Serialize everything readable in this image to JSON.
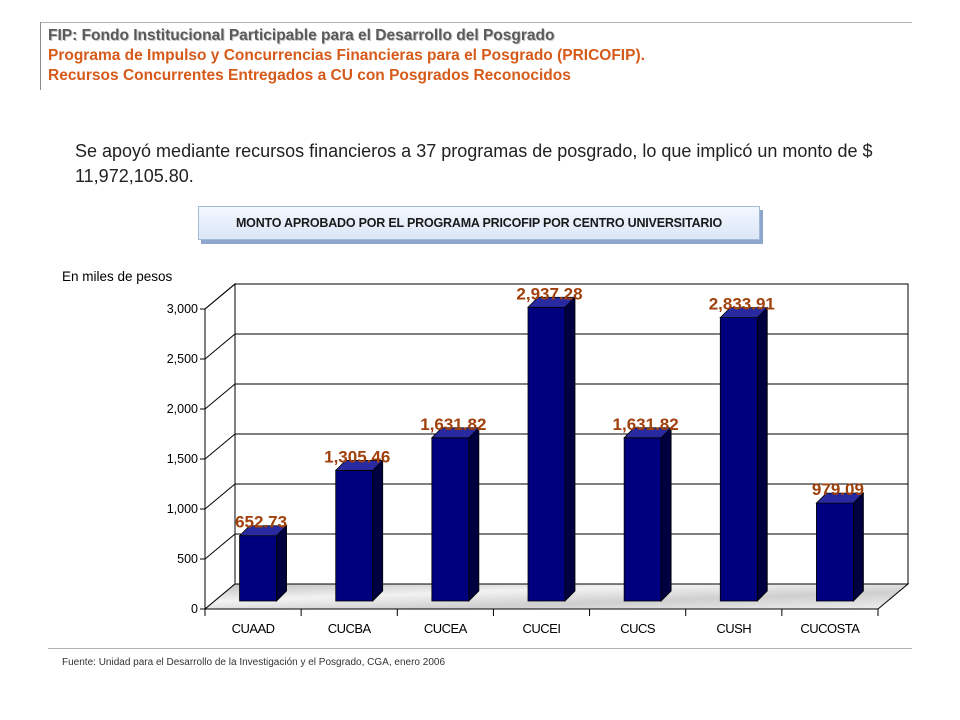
{
  "header": {
    "title": "FIP: Fondo Institucional Participable para el Desarrollo del Posgrado",
    "subtitle_1": "Programa de Impulso y Concurrencias Financieras para el Posgrado (PRICOFIP).",
    "subtitle_2": "Recursos Concurrentes Entregados a CU con Posgrados Reconocidos"
  },
  "summary": "Se apoyó mediante recursos financieros a 37 programas de posgrado, lo que implicó un monto de $ 11,972,105.80.",
  "footnote": "Fuente: Unidad para el Desarrollo de la Investigación y el Posgrado, CGA, enero 2006",
  "colors": {
    "bar_front": "#00007f",
    "bar_side": "#000040",
    "bar_top": "#2a2aa0",
    "data_label": "#a0400c"
  },
  "chart_data": {
    "type": "bar",
    "title": "MONTO APROBADO POR EL PROGRAMA PRICOFIP POR CENTRO UNIVERSITARIO",
    "ylabel": "En miles de pesos",
    "xlabel": "",
    "categories": [
      "CUAAD",
      "CUCBA",
      "CUCEA",
      "CUCEI",
      "CUCS",
      "CUSH",
      "CUCOSTA"
    ],
    "values": [
      652.73,
      1305.46,
      1631.82,
      2937.28,
      1631.82,
      2833.91,
      979.09
    ],
    "data_labels": [
      "652.73",
      "1,305.46",
      "1,631.82",
      "2,937.28",
      "1,631.82",
      "2,833.91",
      "979.09"
    ],
    "yticks": [
      0,
      500,
      1000,
      1500,
      2000,
      2500,
      3000
    ],
    "ytick_labels": [
      "0",
      "500",
      "1,000",
      "1,500",
      "2,000",
      "2,500",
      "3,000"
    ],
    "ylim": [
      0,
      3000
    ],
    "grid": true,
    "legend": "none"
  }
}
